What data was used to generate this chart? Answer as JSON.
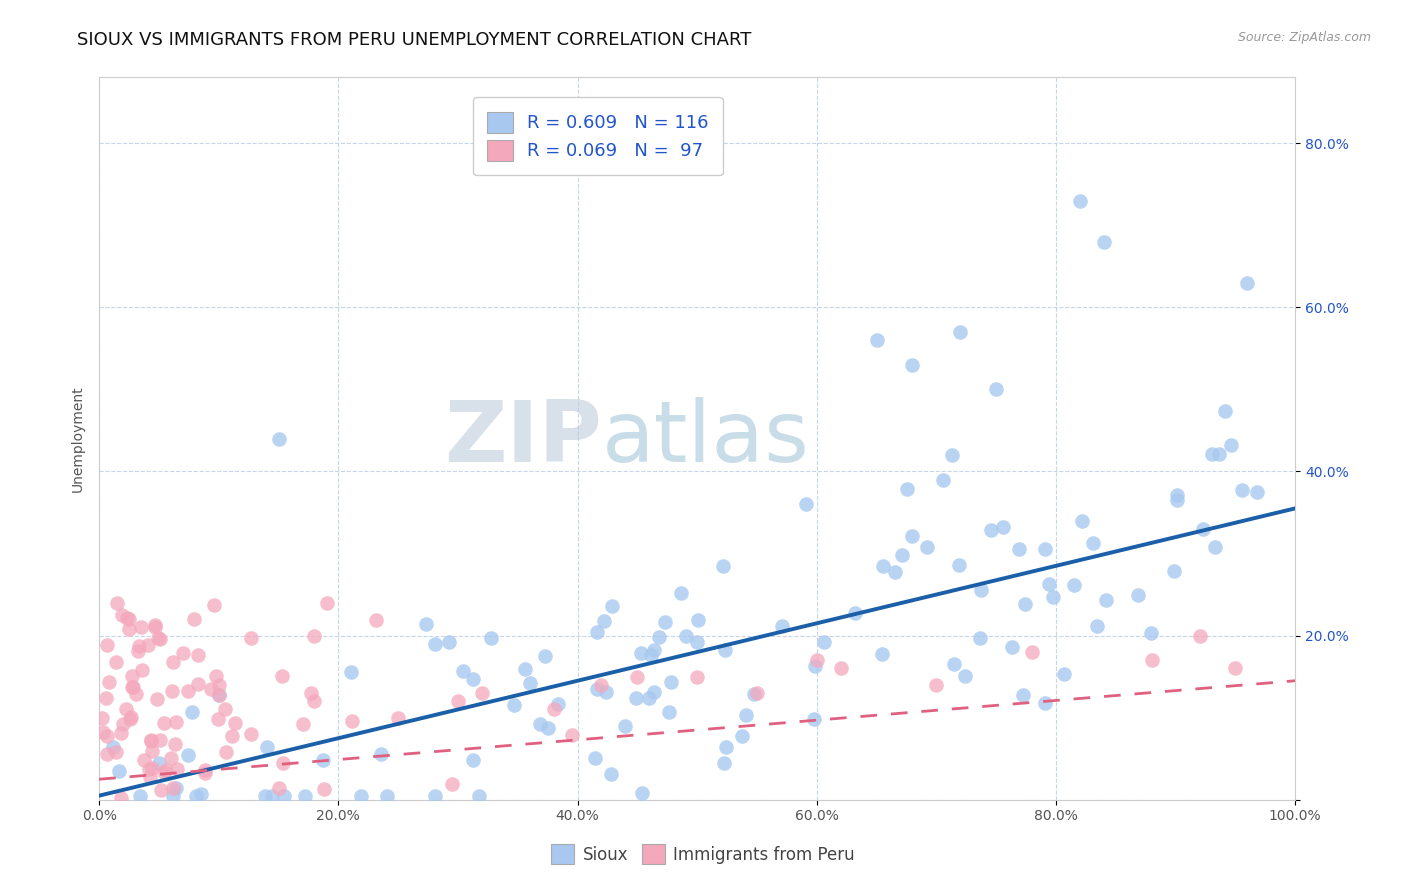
{
  "title": "SIOUX VS IMMIGRANTS FROM PERU UNEMPLOYMENT CORRELATION CHART",
  "source_text": "Source: ZipAtlas.com",
  "ylabel": "Unemployment",
  "xlim": [
    0.0,
    1.0
  ],
  "ylim": [
    0.0,
    0.88
  ],
  "xticks": [
    0.0,
    0.2,
    0.4,
    0.6,
    0.8,
    1.0
  ],
  "xtick_labels": [
    "0.0%",
    "20.0%",
    "40.0%",
    "60.0%",
    "80.0%",
    "100.0%"
  ],
  "yticks": [
    0.0,
    0.2,
    0.4,
    0.6,
    0.8
  ],
  "ytick_labels": [
    "",
    "20.0%",
    "40.0%",
    "60.0%",
    "80.0%"
  ],
  "sioux_color": "#a8c8f0",
  "peru_color": "#f4a8bc",
  "sioux_line_color": "#1a5fa8",
  "peru_line_color": "#e06080",
  "R_sioux": 0.609,
  "N_sioux": 116,
  "R_peru": 0.069,
  "N_peru": 97,
  "watermark_zip": "ZIP",
  "watermark_atlas": "atlas",
  "background_color": "#ffffff",
  "grid_color": "#c8d4e8",
  "title_fontsize": 13,
  "axis_label_fontsize": 10,
  "tick_fontsize": 10,
  "legend_fontsize": 13,
  "sioux_line_slope": 0.35,
  "sioux_line_intercept": 0.005,
  "peru_line_slope": 0.12,
  "peru_line_intercept": 0.025
}
